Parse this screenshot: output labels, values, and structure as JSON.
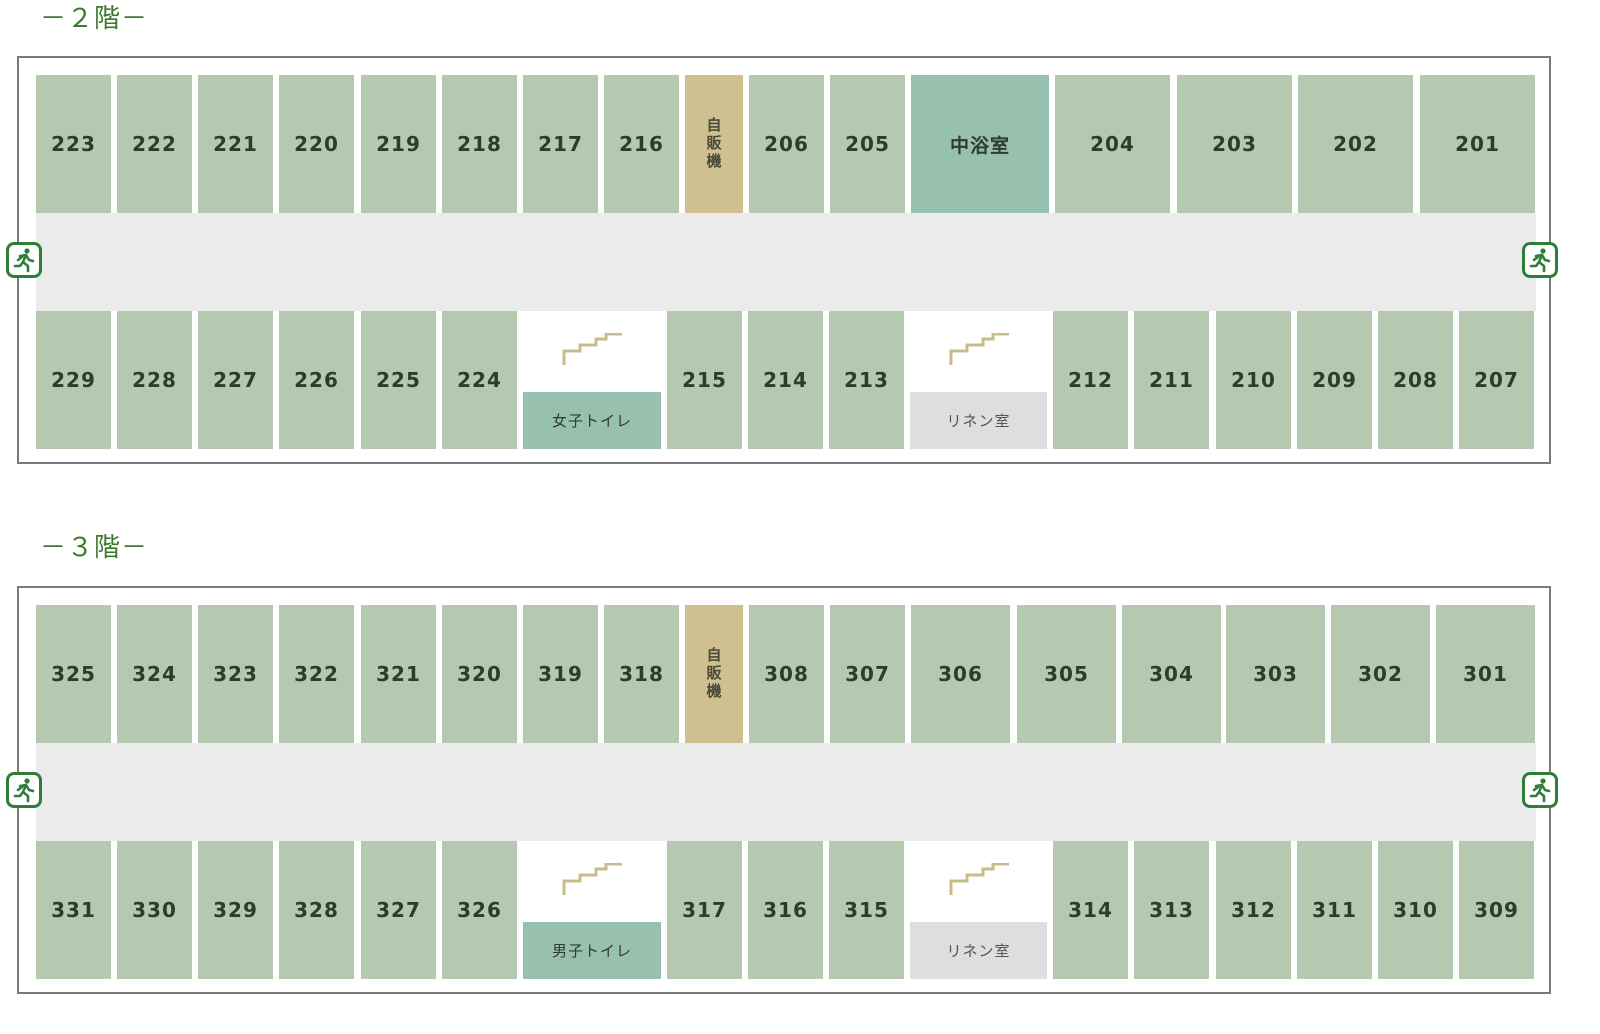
{
  "floors": [
    {
      "title": "－２階－",
      "top_row": [
        "223",
        "222",
        "221",
        "220",
        "219",
        "218",
        "217",
        "216",
        "自販機",
        "206",
        "205",
        "中浴室",
        "204",
        "203",
        "202",
        "201"
      ],
      "bottom_row": [
        "229",
        "228",
        "227",
        "226",
        "225",
        "224",
        "215",
        "214",
        "213",
        "212",
        "211",
        "210",
        "209",
        "208",
        "207"
      ],
      "toilet": "女子トイレ",
      "linen": "リネン室"
    },
    {
      "title": "－３階－",
      "top_row": [
        "325",
        "324",
        "323",
        "322",
        "321",
        "320",
        "319",
        "318",
        "自販機",
        "308",
        "307",
        "306",
        "305",
        "304",
        "303",
        "302",
        "301"
      ],
      "bottom_row": [
        "331",
        "330",
        "329",
        "328",
        "327",
        "326",
        "317",
        "316",
        "315",
        "314",
        "313",
        "312",
        "311",
        "310",
        "309"
      ],
      "toilet": "男子トイレ",
      "linen": "リネン室"
    }
  ],
  "icons": {
    "exit": "emergency-exit-icon",
    "stairs": "stairs-icon"
  },
  "colors": {
    "room": "#b5c9b0",
    "bath": "#97c0ae",
    "vending": "#cfc18f",
    "linen": "#dedede",
    "exit": "#2f7d3b",
    "title": "#3b7a2e"
  }
}
